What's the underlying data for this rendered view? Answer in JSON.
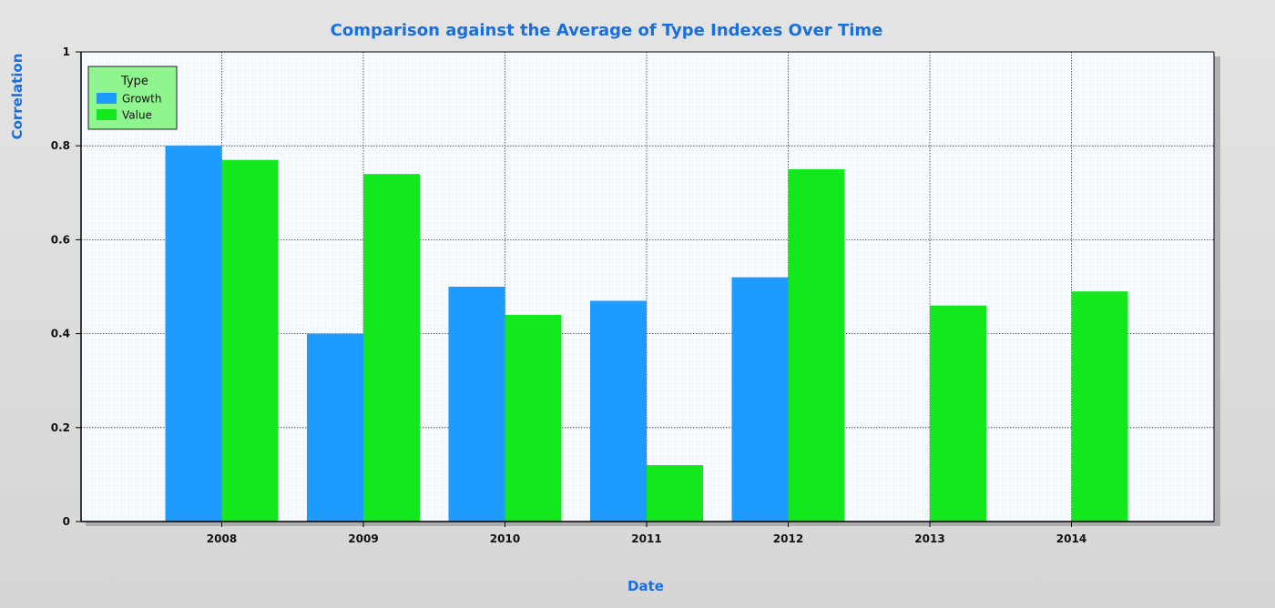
{
  "chart_data": {
    "type": "bar",
    "title": "Comparison against the Average of Type Indexes Over Time",
    "xlabel": "Date",
    "ylabel": "Correlation",
    "categories": [
      "2008",
      "2009",
      "2010",
      "2011",
      "2012",
      "2013",
      "2014"
    ],
    "series": [
      {
        "name": "Growth",
        "color": "#1e9bff",
        "values": [
          0.8,
          0.4,
          0.5,
          0.47,
          0.52,
          null,
          null
        ]
      },
      {
        "name": "Value",
        "color": "#12e81c",
        "values": [
          0.77,
          0.74,
          0.44,
          0.12,
          0.75,
          0.46,
          0.49
        ]
      }
    ],
    "ylim": [
      0,
      1
    ],
    "yticks": [
      0,
      0.2,
      0.4,
      0.6,
      0.8,
      1
    ],
    "ytick_labels": [
      "0",
      "0.2",
      "0.4",
      "0.6",
      "0.8",
      "1"
    ],
    "grid": true,
    "legend": {
      "title": "Type",
      "placement": "top-left",
      "background": "#8ff58f"
    }
  }
}
